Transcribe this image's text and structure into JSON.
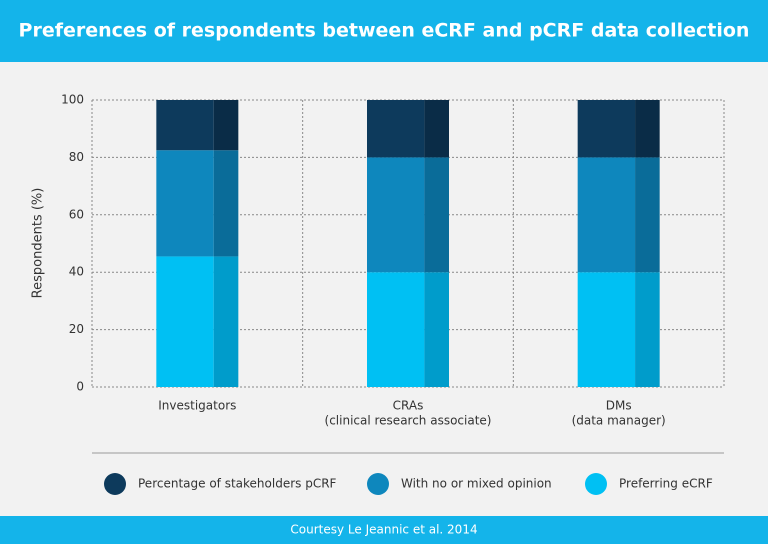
{
  "chart_data": {
    "type": "stacked_bar",
    "title": "Preferences of respondents between eCRF and pCRF data collection",
    "ylabel": "Respondents (%)",
    "categories": [
      [
        "Investigators"
      ],
      [
        "CRAs",
        "(clinical research associate)"
      ],
      [
        "DMs",
        "(data manager)"
      ]
    ],
    "series": [
      {
        "name": "Percentage of stakeholders pCRF",
        "color": "#0d3a5c",
        "shade": "#0a2c47",
        "values": [
          17.5,
          20,
          20
        ]
      },
      {
        "name": "With no or mixed opinion",
        "color": "#0e87bd",
        "shade": "#0a6c99",
        "values": [
          37,
          40,
          40
        ]
      },
      {
        "name": "Preferring eCRF",
        "color": "#00c0f3",
        "shade": "#009ccb",
        "values": [
          45.5,
          40,
          40
        ]
      }
    ],
    "ylim": [
      0,
      100
    ],
    "yticks": [
      0,
      20,
      40,
      60,
      80,
      100
    ],
    "grid": true,
    "source": "Courtesy Le Jeannic et al. 2014"
  }
}
